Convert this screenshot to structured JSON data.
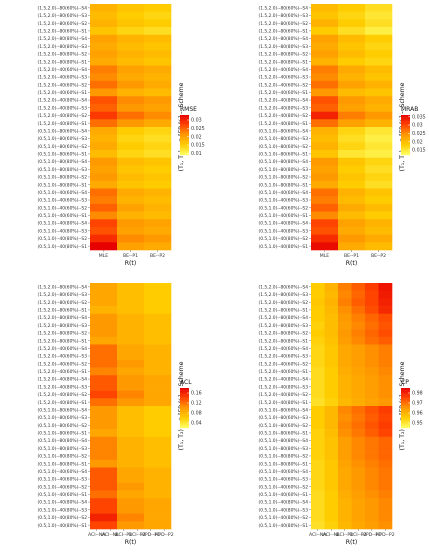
{
  "rows": [
    "(1.5,2.0)--80(60%)--S4",
    "(1.5,2.0)--80(60%)--S3",
    "(1.5,2.0)--80(60%)--S2",
    "(1.5,2.0)--80(60%)--S1",
    "(1.5,2.0)--80(80%)--S4",
    "(1.5,2.0)--80(80%)--S3",
    "(1.5,2.0)--80(80%)--S2",
    "(1.5,2.0)--80(80%)--S1",
    "(1.5,2.0)--40(60%)--S4",
    "(1.5,2.0)--40(60%)--S3",
    "(1.5,2.0)--40(60%)--S2",
    "(1.5,2.0)--40(60%)--S1",
    "(1.5,2.0)--40(80%)--S4",
    "(1.5,2.0)--40(80%)--S3",
    "(1.5,2.0)--40(80%)--S2",
    "(1.5,2.0)--40(80%)--S1",
    "(0.5,1.0)--80(60%)--S4",
    "(0.5,1.0)--80(60%)--S3",
    "(0.5,1.0)--80(60%)--S2",
    "(0.5,1.0)--80(60%)--S1",
    "(0.5,1.0)--80(80%)--S4",
    "(0.5,1.0)--80(80%)--S3",
    "(0.5,1.0)--80(80%)--S2",
    "(0.5,1.0)--80(80%)--S1",
    "(0.5,1.0)--40(60%)--S4",
    "(0.5,1.0)--40(60%)--S3",
    "(0.5,1.0)--40(60%)--S2",
    "(0.5,1.0)--40(60%)--S1",
    "(0.5,1.0)--40(80%)--S4",
    "(0.5,1.0)--40(80%)--S3",
    "(0.5,1.0)--40(80%)--S2",
    "(0.5,1.0)--40(80%)--S1"
  ],
  "chart_data": [
    {
      "type": "heatmap",
      "ylabel": "(T₁, T₂) -- n [FP %] -- Scheme",
      "xlabel": "R(t)",
      "columns": [
        "MLE",
        "BE--P1",
        "BE--P2"
      ],
      "legend_title": "RMSE",
      "legend_ticks": [
        0.03,
        0.025,
        0.02,
        0.015,
        0.01
      ],
      "scale": {
        "min": 0.009,
        "max": 0.033,
        "colors": [
          "#ffff66",
          "#ffcc00",
          "#ff9900",
          "#ff4400",
          "#e60000"
        ]
      },
      "values": [
        [
          0.018,
          0.016,
          0.015
        ],
        [
          0.017,
          0.015,
          0.014
        ],
        [
          0.018,
          0.016,
          0.015
        ],
        [
          0.016,
          0.014,
          0.013
        ],
        [
          0.02,
          0.018,
          0.017
        ],
        [
          0.019,
          0.017,
          0.016
        ],
        [
          0.02,
          0.018,
          0.017
        ],
        [
          0.019,
          0.017,
          0.016
        ],
        [
          0.023,
          0.02,
          0.019
        ],
        [
          0.022,
          0.019,
          0.018
        ],
        [
          0.024,
          0.021,
          0.019
        ],
        [
          0.021,
          0.018,
          0.017
        ],
        [
          0.026,
          0.022,
          0.021
        ],
        [
          0.025,
          0.021,
          0.02
        ],
        [
          0.028,
          0.024,
          0.022
        ],
        [
          0.024,
          0.021,
          0.019
        ],
        [
          0.019,
          0.015,
          0.014
        ],
        [
          0.018,
          0.014,
          0.013
        ],
        [
          0.019,
          0.015,
          0.014
        ],
        [
          0.017,
          0.014,
          0.013
        ],
        [
          0.021,
          0.017,
          0.016
        ],
        [
          0.02,
          0.016,
          0.015
        ],
        [
          0.021,
          0.017,
          0.016
        ],
        [
          0.019,
          0.016,
          0.015
        ],
        [
          0.024,
          0.019,
          0.018
        ],
        [
          0.023,
          0.018,
          0.017
        ],
        [
          0.025,
          0.02,
          0.018
        ],
        [
          0.022,
          0.018,
          0.017
        ],
        [
          0.027,
          0.021,
          0.02
        ],
        [
          0.026,
          0.02,
          0.019
        ],
        [
          0.029,
          0.022,
          0.021
        ],
        [
          0.033,
          0.02,
          0.019
        ]
      ]
    },
    {
      "type": "heatmap",
      "ylabel": "(T₁, T₂) -- n [FP %] -- Scheme",
      "xlabel": "R(t)",
      "columns": [
        "MLE",
        "BE--P1",
        "BE--P2"
      ],
      "legend_title": "MRAB",
      "legend_ticks": [
        0.035,
        0.03,
        0.025,
        0.02,
        0.015
      ],
      "scale": {
        "min": 0.012,
        "max": 0.036,
        "colors": [
          "#ffff66",
          "#ffcc00",
          "#ff9900",
          "#ff4400",
          "#e60000"
        ]
      },
      "values": [
        [
          0.02,
          0.018,
          0.016
        ],
        [
          0.019,
          0.017,
          0.015
        ],
        [
          0.021,
          0.018,
          0.016
        ],
        [
          0.018,
          0.016,
          0.014
        ],
        [
          0.023,
          0.02,
          0.018
        ],
        [
          0.022,
          0.019,
          0.017
        ],
        [
          0.023,
          0.02,
          0.018
        ],
        [
          0.021,
          0.018,
          0.017
        ],
        [
          0.026,
          0.022,
          0.02
        ],
        [
          0.025,
          0.021,
          0.019
        ],
        [
          0.027,
          0.023,
          0.021
        ],
        [
          0.024,
          0.02,
          0.019
        ],
        [
          0.029,
          0.024,
          0.022
        ],
        [
          0.028,
          0.023,
          0.021
        ],
        [
          0.033,
          0.026,
          0.024
        ],
        [
          0.027,
          0.023,
          0.021
        ],
        [
          0.021,
          0.017,
          0.015
        ],
        [
          0.02,
          0.016,
          0.014
        ],
        [
          0.021,
          0.017,
          0.015
        ],
        [
          0.019,
          0.015,
          0.014
        ],
        [
          0.024,
          0.019,
          0.017
        ],
        [
          0.023,
          0.018,
          0.016
        ],
        [
          0.024,
          0.019,
          0.017
        ],
        [
          0.022,
          0.018,
          0.016
        ],
        [
          0.027,
          0.021,
          0.019
        ],
        [
          0.026,
          0.02,
          0.018
        ],
        [
          0.028,
          0.022,
          0.02
        ],
        [
          0.025,
          0.02,
          0.018
        ],
        [
          0.03,
          0.023,
          0.021
        ],
        [
          0.029,
          0.022,
          0.02
        ],
        [
          0.032,
          0.024,
          0.022
        ],
        [
          0.035,
          0.022,
          0.02
        ]
      ]
    },
    {
      "type": "heatmap",
      "ylabel": "(T₁, T₂) -- n [FP %] -- Scheme",
      "xlabel": "R(t)",
      "columns": [
        "ACI--NA",
        "ACI--NL",
        "BCI--P1",
        "BCI--P2",
        "HPD--P1",
        "HPD--P2"
      ],
      "legend_title": "ACL",
      "legend_ticks": [
        0.16,
        0.12,
        0.08,
        0.04
      ],
      "scale": {
        "min": 0.02,
        "max": 0.18,
        "colors": [
          "#ffff66",
          "#ffcc00",
          "#ff9900",
          "#ff4400",
          "#e60000"
        ]
      },
      "values": [
        [
          0.09,
          0.09,
          0.07,
          0.07,
          0.06,
          0.06
        ],
        [
          0.09,
          0.09,
          0.07,
          0.07,
          0.06,
          0.06
        ],
        [
          0.09,
          0.09,
          0.07,
          0.07,
          0.06,
          0.06
        ],
        [
          0.08,
          0.08,
          0.07,
          0.07,
          0.06,
          0.06
        ],
        [
          0.1,
          0.1,
          0.08,
          0.08,
          0.07,
          0.07
        ],
        [
          0.1,
          0.1,
          0.08,
          0.08,
          0.07,
          0.07
        ],
        [
          0.1,
          0.1,
          0.08,
          0.08,
          0.07,
          0.07
        ],
        [
          0.09,
          0.09,
          0.08,
          0.08,
          0.07,
          0.07
        ],
        [
          0.12,
          0.12,
          0.09,
          0.09,
          0.08,
          0.08
        ],
        [
          0.12,
          0.12,
          0.09,
          0.09,
          0.08,
          0.08
        ],
        [
          0.12,
          0.12,
          0.1,
          0.1,
          0.08,
          0.08
        ],
        [
          0.11,
          0.11,
          0.09,
          0.09,
          0.08,
          0.08
        ],
        [
          0.13,
          0.13,
          0.1,
          0.1,
          0.09,
          0.09
        ],
        [
          0.13,
          0.13,
          0.1,
          0.1,
          0.09,
          0.09
        ],
        [
          0.14,
          0.14,
          0.11,
          0.11,
          0.09,
          0.09
        ],
        [
          0.12,
          0.12,
          0.1,
          0.1,
          0.09,
          0.09
        ],
        [
          0.1,
          0.1,
          0.07,
          0.07,
          0.06,
          0.06
        ],
        [
          0.1,
          0.1,
          0.07,
          0.07,
          0.06,
          0.06
        ],
        [
          0.1,
          0.1,
          0.07,
          0.07,
          0.06,
          0.06
        ],
        [
          0.09,
          0.09,
          0.07,
          0.07,
          0.06,
          0.06
        ],
        [
          0.11,
          0.11,
          0.08,
          0.08,
          0.07,
          0.07
        ],
        [
          0.11,
          0.11,
          0.08,
          0.08,
          0.07,
          0.07
        ],
        [
          0.11,
          0.11,
          0.08,
          0.08,
          0.07,
          0.07
        ],
        [
          0.1,
          0.1,
          0.08,
          0.08,
          0.07,
          0.07
        ],
        [
          0.13,
          0.13,
          0.09,
          0.09,
          0.08,
          0.08
        ],
        [
          0.13,
          0.13,
          0.09,
          0.09,
          0.08,
          0.08
        ],
        [
          0.13,
          0.13,
          0.1,
          0.1,
          0.08,
          0.08
        ],
        [
          0.12,
          0.12,
          0.09,
          0.09,
          0.08,
          0.08
        ],
        [
          0.14,
          0.14,
          0.1,
          0.1,
          0.09,
          0.09
        ],
        [
          0.14,
          0.14,
          0.1,
          0.1,
          0.09,
          0.09
        ],
        [
          0.16,
          0.16,
          0.11,
          0.11,
          0.09,
          0.09
        ],
        [
          0.14,
          0.14,
          0.1,
          0.1,
          0.09,
          0.09
        ]
      ]
    },
    {
      "type": "heatmap",
      "ylabel": "(T₁, T₂) -- n [FP %] -- Scheme",
      "xlabel": "R(t)",
      "columns": [
        "ACI--NA",
        "ACI--NL",
        "BCI--P1",
        "BCI--P2",
        "HPD--P1",
        "HPD--P2"
      ],
      "legend_title": "CP",
      "legend_ticks": [
        0.98,
        0.97,
        0.96,
        0.95
      ],
      "scale": {
        "min": 0.945,
        "max": 0.985,
        "colors": [
          "#ffff66",
          "#ffcc00",
          "#ff9900",
          "#ff4400",
          "#e60000"
        ]
      },
      "values": [
        [
          0.955,
          0.96,
          0.968,
          0.972,
          0.976,
          0.982
        ],
        [
          0.955,
          0.959,
          0.967,
          0.971,
          0.975,
          0.981
        ],
        [
          0.956,
          0.96,
          0.968,
          0.972,
          0.975,
          0.98
        ],
        [
          0.955,
          0.959,
          0.966,
          0.97,
          0.974,
          0.979
        ],
        [
          0.955,
          0.958,
          0.965,
          0.968,
          0.971,
          0.974
        ],
        [
          0.954,
          0.958,
          0.964,
          0.967,
          0.97,
          0.973
        ],
        [
          0.955,
          0.958,
          0.965,
          0.968,
          0.971,
          0.974
        ],
        [
          0.954,
          0.957,
          0.964,
          0.967,
          0.97,
          0.972
        ],
        [
          0.953,
          0.956,
          0.962,
          0.964,
          0.966,
          0.968
        ],
        [
          0.953,
          0.956,
          0.962,
          0.964,
          0.966,
          0.968
        ],
        [
          0.953,
          0.956,
          0.962,
          0.964,
          0.966,
          0.968
        ],
        [
          0.952,
          0.955,
          0.961,
          0.963,
          0.965,
          0.967
        ],
        [
          0.952,
          0.955,
          0.96,
          0.962,
          0.964,
          0.966
        ],
        [
          0.952,
          0.955,
          0.96,
          0.962,
          0.964,
          0.966
        ],
        [
          0.952,
          0.955,
          0.96,
          0.962,
          0.964,
          0.966
        ],
        [
          0.951,
          0.954,
          0.959,
          0.961,
          0.963,
          0.965
        ],
        [
          0.955,
          0.959,
          0.967,
          0.97,
          0.973,
          0.976
        ],
        [
          0.955,
          0.959,
          0.966,
          0.969,
          0.972,
          0.975
        ],
        [
          0.955,
          0.959,
          0.967,
          0.97,
          0.973,
          0.976
        ],
        [
          0.954,
          0.958,
          0.966,
          0.969,
          0.972,
          0.975
        ],
        [
          0.954,
          0.957,
          0.964,
          0.967,
          0.969,
          0.971
        ],
        [
          0.954,
          0.957,
          0.964,
          0.967,
          0.969,
          0.971
        ],
        [
          0.954,
          0.957,
          0.964,
          0.967,
          0.969,
          0.971
        ],
        [
          0.953,
          0.956,
          0.963,
          0.966,
          0.968,
          0.97
        ],
        [
          0.953,
          0.956,
          0.962,
          0.965,
          0.967,
          0.969
        ],
        [
          0.953,
          0.956,
          0.962,
          0.965,
          0.967,
          0.969
        ],
        [
          0.953,
          0.956,
          0.962,
          0.965,
          0.967,
          0.969
        ],
        [
          0.952,
          0.955,
          0.961,
          0.964,
          0.966,
          0.968
        ],
        [
          0.952,
          0.955,
          0.96,
          0.963,
          0.965,
          0.967
        ],
        [
          0.952,
          0.955,
          0.96,
          0.963,
          0.965,
          0.967
        ],
        [
          0.952,
          0.955,
          0.96,
          0.963,
          0.965,
          0.967
        ],
        [
          0.951,
          0.954,
          0.959,
          0.962,
          0.964,
          0.966
        ]
      ]
    }
  ]
}
